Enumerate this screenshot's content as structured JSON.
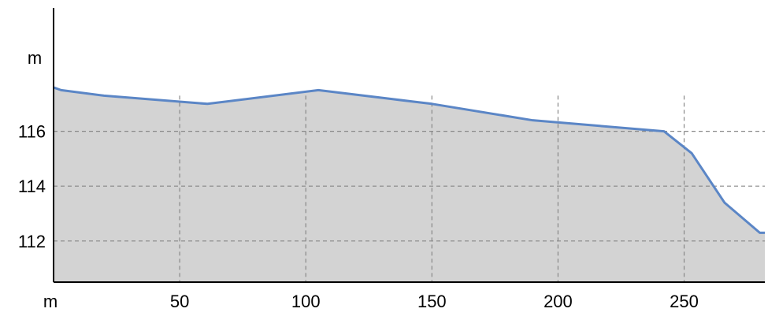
{
  "chart_data": {
    "type": "area",
    "x_unit": "m",
    "y_unit": "m",
    "x_ticks": [
      50,
      100,
      150,
      200,
      250
    ],
    "y_ticks": [
      112,
      114,
      116
    ],
    "xlim": [
      0,
      282
    ],
    "ylim": [
      110.5,
      120.5
    ],
    "grid": true,
    "series": [
      {
        "x": [
          0,
          3,
          20,
          61,
          105,
          150,
          190,
          242,
          253,
          266,
          280,
          282
        ],
        "y": [
          117.6,
          117.5,
          117.3,
          117.0,
          117.5,
          117.0,
          116.4,
          116.0,
          115.2,
          113.4,
          112.3,
          112.3
        ]
      }
    ],
    "colors": {
      "line": "#5b86c6",
      "fill": "#d3d3d3",
      "grid": "#888888",
      "axis": "#000000"
    }
  }
}
